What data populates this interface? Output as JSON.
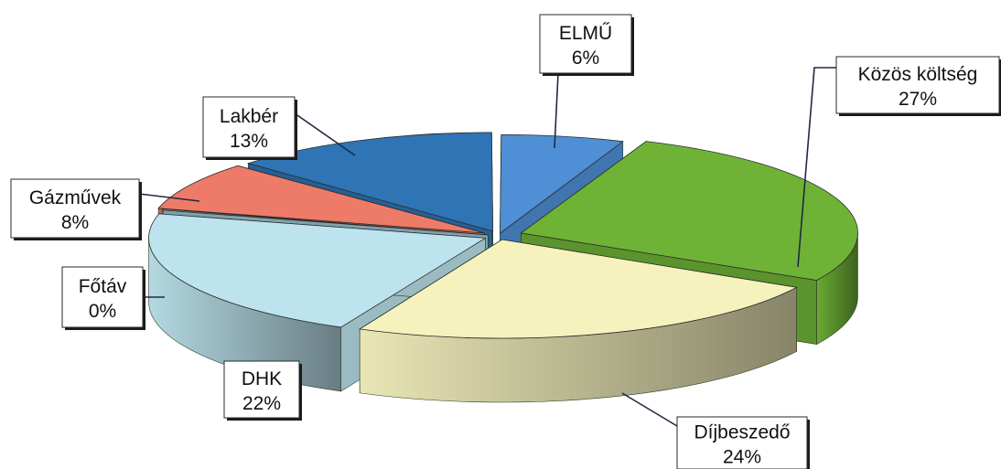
{
  "chart_data": {
    "type": "pie",
    "style": "3d-exploded",
    "slices": [
      {
        "label": "ELMŰ",
        "value": 6,
        "value_label": "6%",
        "color": "#4F8FD6"
      },
      {
        "label": "Közös költség",
        "value": 27,
        "value_label": "27%",
        "color": "#6FB336"
      },
      {
        "label": "Díjbeszedő",
        "value": 24,
        "value_label": "24%",
        "color": "#F5F2BE"
      },
      {
        "label": "DHK",
        "value": 22,
        "value_label": "22%",
        "color": "#BDE4EE"
      },
      {
        "label": "Főtáv",
        "value": 0,
        "value_label": "0%",
        "color": "#9CC3D0"
      },
      {
        "label": "Gázművek",
        "value": 8,
        "value_label": "8%",
        "color": "#EE7B68"
      },
      {
        "label": "Lakbér",
        "value": 13,
        "value_label": "13%",
        "color": "#2F74B4"
      }
    ]
  }
}
